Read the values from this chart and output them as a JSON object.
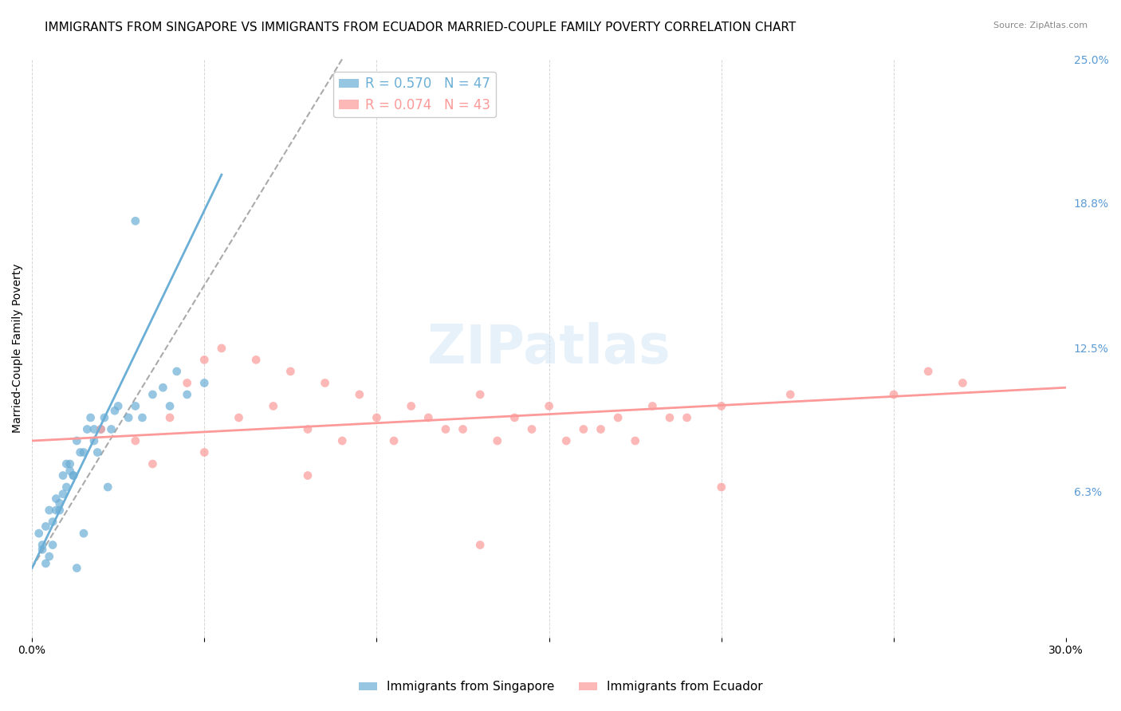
{
  "title": "IMMIGRANTS FROM SINGAPORE VS IMMIGRANTS FROM ECUADOR MARRIED-COUPLE FAMILY POVERTY CORRELATION CHART",
  "source": "Source: ZipAtlas.com",
  "ylabel": "Married-Couple Family Poverty",
  "xlabel": "",
  "xlim": [
    0.0,
    30.0
  ],
  "ylim": [
    0.0,
    25.0
  ],
  "xtick_positions": [
    0.0,
    5.0,
    10.0,
    15.0,
    20.0,
    25.0,
    30.0
  ],
  "xtick_labels": [
    "0.0%",
    "",
    "",
    "",
    "",
    "",
    "30.0%"
  ],
  "ytick_labels_right": [
    "6.3%",
    "12.5%",
    "18.8%",
    "25.0%"
  ],
  "ytick_values_right": [
    6.3,
    12.5,
    18.8,
    25.0
  ],
  "watermark": "ZIPatlas",
  "singapore_color": "#6baed6",
  "ecuador_color": "#fb9a99",
  "singapore_R": 0.57,
  "singapore_N": 47,
  "ecuador_R": 0.074,
  "ecuador_N": 43,
  "singapore_scatter_x": [
    0.2,
    0.3,
    0.4,
    0.5,
    0.6,
    0.7,
    0.8,
    0.9,
    1.0,
    1.1,
    1.2,
    1.3,
    1.4,
    1.5,
    1.6,
    1.7,
    1.8,
    1.9,
    2.0,
    2.1,
    2.3,
    2.5,
    2.8,
    3.0,
    3.2,
    3.5,
    4.0,
    4.5,
    5.0,
    2.2,
    1.0,
    0.8,
    1.5,
    0.5,
    0.3,
    0.4,
    0.6,
    0.9,
    1.2,
    1.8,
    2.4,
    3.8,
    0.7,
    1.1,
    1.3,
    4.2,
    3.0
  ],
  "singapore_scatter_y": [
    4.5,
    3.8,
    3.2,
    5.5,
    4.0,
    6.0,
    5.8,
    7.0,
    6.5,
    7.5,
    7.0,
    8.5,
    8.0,
    8.0,
    9.0,
    9.5,
    8.5,
    8.0,
    9.0,
    9.5,
    9.0,
    10.0,
    9.5,
    10.0,
    9.5,
    10.5,
    10.0,
    10.5,
    11.0,
    6.5,
    7.5,
    5.5,
    4.5,
    3.5,
    4.0,
    4.8,
    5.0,
    6.2,
    7.0,
    9.0,
    9.8,
    10.8,
    5.5,
    7.2,
    3.0,
    11.5,
    18.0
  ],
  "ecuador_scatter_x": [
    2.0,
    3.0,
    4.0,
    5.0,
    6.0,
    7.0,
    8.0,
    9.0,
    10.0,
    11.0,
    12.0,
    13.0,
    14.0,
    15.0,
    16.0,
    17.0,
    18.0,
    19.0,
    20.0,
    22.0,
    25.0,
    27.0,
    3.5,
    4.5,
    5.5,
    6.5,
    7.5,
    8.5,
    9.5,
    10.5,
    11.5,
    12.5,
    13.5,
    14.5,
    15.5,
    16.5,
    17.5,
    18.5,
    5.0,
    8.0,
    26.0,
    13.0,
    20.0
  ],
  "ecuador_scatter_y": [
    9.0,
    8.5,
    9.5,
    8.0,
    9.5,
    10.0,
    9.0,
    8.5,
    9.5,
    10.0,
    9.0,
    10.5,
    9.5,
    10.0,
    9.0,
    9.5,
    10.0,
    9.5,
    10.0,
    10.5,
    10.5,
    11.0,
    7.5,
    11.0,
    12.5,
    12.0,
    11.5,
    11.0,
    10.5,
    8.5,
    9.5,
    9.0,
    8.5,
    9.0,
    8.5,
    9.0,
    8.5,
    9.5,
    12.0,
    7.0,
    11.5,
    4.0,
    6.5
  ],
  "background_color": "#ffffff",
  "grid_color": "#cccccc",
  "title_fontsize": 11,
  "axis_fontsize": 10,
  "tick_fontsize": 10,
  "legend_fontsize": 12
}
